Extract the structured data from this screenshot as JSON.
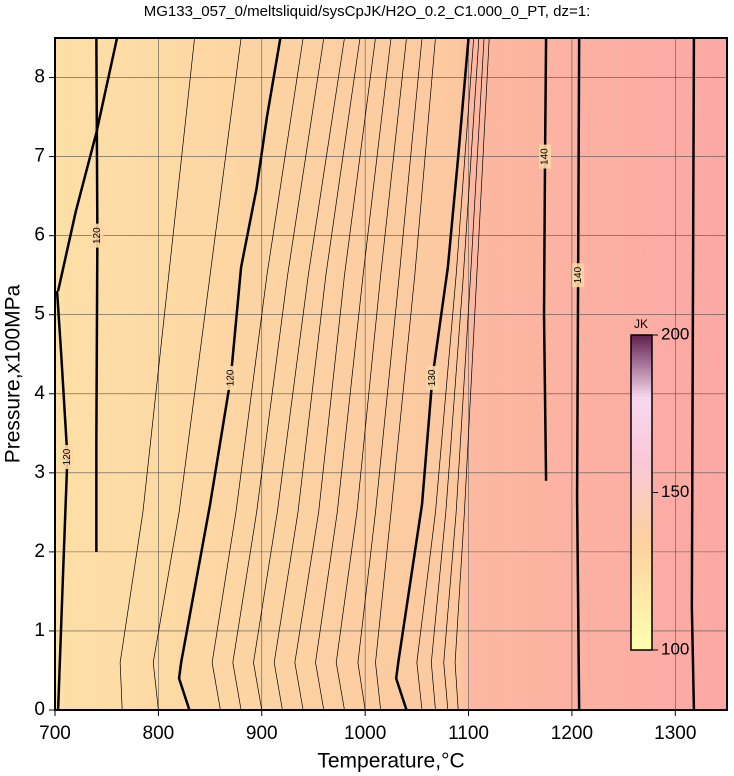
{
  "chart_data": {
    "type": "contour",
    "title": "MG133_057_0/meltsliquid/sysCpJK/H2O_0.2_C1.000_0_PT, dz=1:",
    "x_label": "Temperature,°C",
    "y_label": "Pressure,x100MPa",
    "xlim": [
      700,
      1350
    ],
    "ylim": [
      0,
      8.5
    ],
    "xticks": [
      700,
      800,
      900,
      1000,
      1100,
      1200,
      1300
    ],
    "yticks": [
      0,
      1,
      2,
      3,
      4,
      5,
      6,
      7,
      8
    ],
    "grid": true,
    "contours": [
      {
        "level": 120,
        "x": [
          703,
          708,
          712,
          706,
          702
        ],
        "y": [
          0,
          1.8,
          3.2,
          4.5,
          5.3
        ]
      },
      {
        "level": 120,
        "x": [
          740,
          740,
          741,
          740
        ],
        "y": [
          2,
          3.4,
          6,
          8.5
        ]
      },
      {
        "level": 120,
        "x": [
          830,
          820,
          822,
          850,
          870,
          880,
          895,
          905,
          918
        ],
        "y": [
          0,
          0.4,
          0.6,
          2.6,
          4.2,
          5.6,
          6.6,
          7.5,
          8.5
        ]
      },
      {
        "level": 130,
        "x": [
          1040,
          1030,
          1032,
          1055,
          1065,
          1080,
          1090,
          1100
        ],
        "y": [
          0,
          0.4,
          0.6,
          2.6,
          4.2,
          5.6,
          7,
          8.5
        ]
      },
      {
        "level": 140,
        "x": [
          1175,
          1173,
          1174,
          1175
        ],
        "y": [
          2.9,
          5,
          7,
          8.5
        ]
      },
      {
        "level": 140,
        "x": [
          1207,
          1205,
          1206,
          1207
        ],
        "y": [
          0,
          2.7,
          5.5,
          8.5
        ]
      },
      {
        "x": [
          1318,
          1316,
          1317,
          1318
        ],
        "y": [
          0,
          1.3,
          5,
          8.5
        ]
      },
      {
        "x": [
          703,
          720,
          740,
          760
        ],
        "y": [
          5.3,
          6.3,
          7.3,
          8.5
        ]
      }
    ],
    "thin_contours": [
      {
        "x": [
          765,
          763,
          785,
          810,
          835
        ],
        "y": [
          0,
          0.6,
          2.5,
          5.5,
          8.5
        ]
      },
      {
        "x": [
          800,
          795,
          820,
          850,
          880
        ],
        "y": [
          0,
          0.6,
          2.5,
          5.5,
          8.5
        ]
      },
      {
        "x": [
          860,
          852,
          875,
          905,
          940
        ],
        "y": [
          0,
          0.6,
          2.5,
          5.5,
          8.5
        ]
      },
      {
        "x": [
          880,
          872,
          895,
          925,
          960
        ],
        "y": [
          0,
          0.6,
          2.5,
          5.5,
          8.5
        ]
      },
      {
        "x": [
          900,
          892,
          915,
          945,
          980
        ],
        "y": [
          0,
          0.6,
          2.5,
          5.5,
          8.5
        ]
      },
      {
        "x": [
          920,
          912,
          935,
          962,
          995
        ],
        "y": [
          0,
          0.6,
          2.5,
          5.5,
          8.5
        ]
      },
      {
        "x": [
          940,
          932,
          955,
          980,
          1010
        ],
        "y": [
          0,
          0.6,
          2.5,
          5.5,
          8.5
        ]
      },
      {
        "x": [
          960,
          952,
          973,
          998,
          1025
        ],
        "y": [
          0,
          0.6,
          2.5,
          5.5,
          8.5
        ]
      },
      {
        "x": [
          980,
          972,
          992,
          1015,
          1040
        ],
        "y": [
          0,
          0.6,
          2.5,
          5.5,
          8.5
        ]
      },
      {
        "x": [
          1000,
          993,
          1010,
          1033,
          1055
        ],
        "y": [
          0,
          0.6,
          2.5,
          5.5,
          8.5
        ]
      },
      {
        "x": [
          1015,
          1010,
          1025,
          1048,
          1068
        ],
        "y": [
          0,
          0.6,
          2.5,
          5.5,
          8.5
        ]
      },
      {
        "x": [
          1055,
          1050,
          1068,
          1088,
          1105
        ],
        "y": [
          0,
          0.6,
          2.5,
          5.5,
          8.5
        ]
      },
      {
        "x": [
          1068,
          1064,
          1078,
          1095,
          1110
        ],
        "y": [
          0,
          0.6,
          2.5,
          5.5,
          8.5
        ]
      },
      {
        "x": [
          1080,
          1076,
          1088,
          1102,
          1115
        ],
        "y": [
          0,
          0.6,
          2.5,
          5.5,
          8.5
        ]
      },
      {
        "x": [
          1090,
          1087,
          1096,
          1108,
          1120
        ],
        "y": [
          0,
          0.6,
          2.5,
          5.5,
          8.5
        ]
      }
    ],
    "colorbar": {
      "label": "JK",
      "lim": [
        100,
        200
      ],
      "ticks": [
        100,
        150,
        200
      ]
    }
  }
}
